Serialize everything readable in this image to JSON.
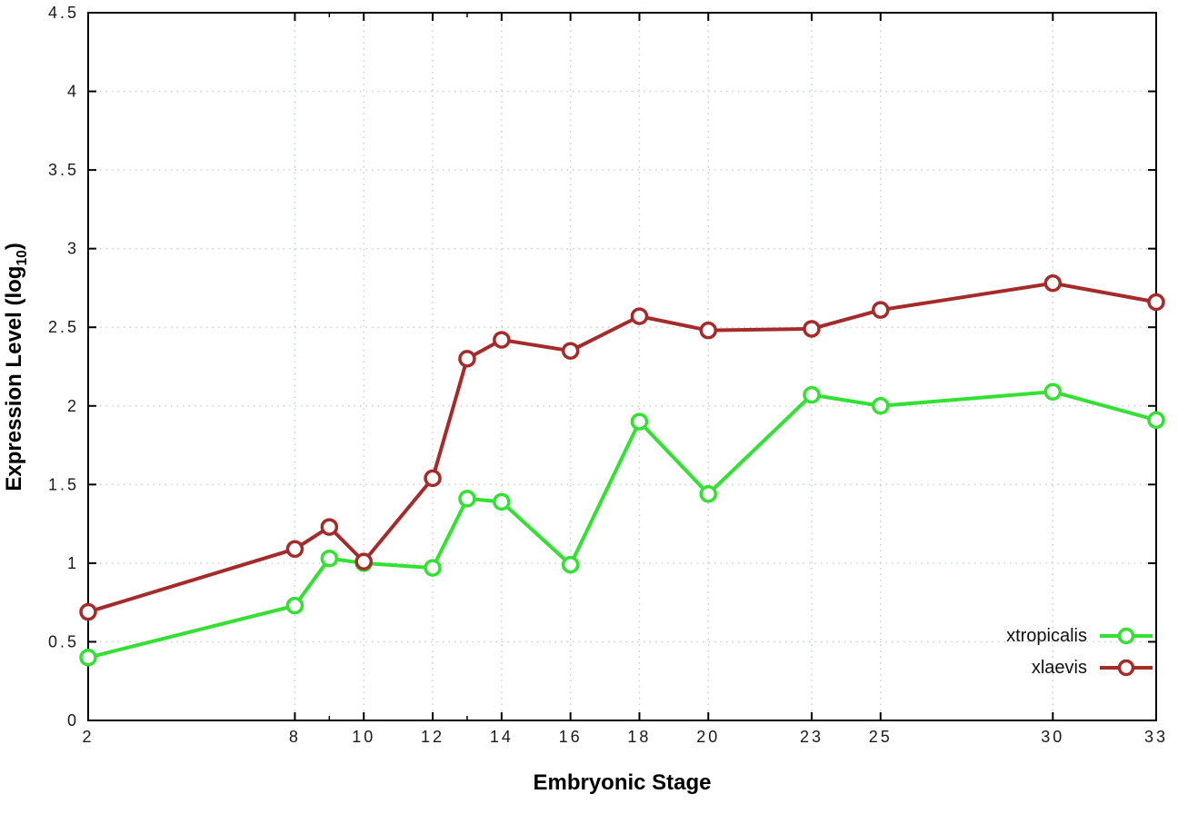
{
  "chart_data": {
    "type": "line",
    "title": "",
    "xlabel": "Embryonic Stage",
    "ylabel": "Expression Level (log10)",
    "ylabel_main": "Expression Level (log",
    "ylabel_sub": "10",
    "ylabel_close": ")",
    "xlim": [
      2,
      33
    ],
    "ylim": [
      0,
      4.5
    ],
    "x_ticks": [
      2,
      8,
      10,
      12,
      14,
      16,
      18,
      20,
      23,
      25,
      30,
      33
    ],
    "y_ticks": [
      0,
      0.5,
      1,
      1.5,
      2,
      2.5,
      3,
      3.5,
      4,
      4.5
    ],
    "grid": true,
    "legend_position": "bottom-right",
    "x": [
      2,
      8,
      9,
      10,
      12,
      13,
      14,
      16,
      18,
      20,
      23,
      25,
      30,
      33
    ],
    "series": [
      {
        "name": "xtropicalis",
        "color": "#32e132",
        "values": [
          0.4,
          0.73,
          1.03,
          1.0,
          0.97,
          1.41,
          1.39,
          0.99,
          1.9,
          1.44,
          2.07,
          2.0,
          2.09,
          1.91
        ]
      },
      {
        "name": "xlaevis",
        "color": "#a52a2a",
        "values": [
          0.69,
          1.09,
          1.23,
          1.01,
          1.54,
          2.3,
          2.42,
          2.35,
          2.57,
          2.48,
          2.49,
          2.61,
          2.78,
          2.66
        ]
      }
    ]
  },
  "colors": {
    "grid": "#bcd6bc",
    "border": "#000000",
    "tick_text": "#1a1a1a"
  }
}
